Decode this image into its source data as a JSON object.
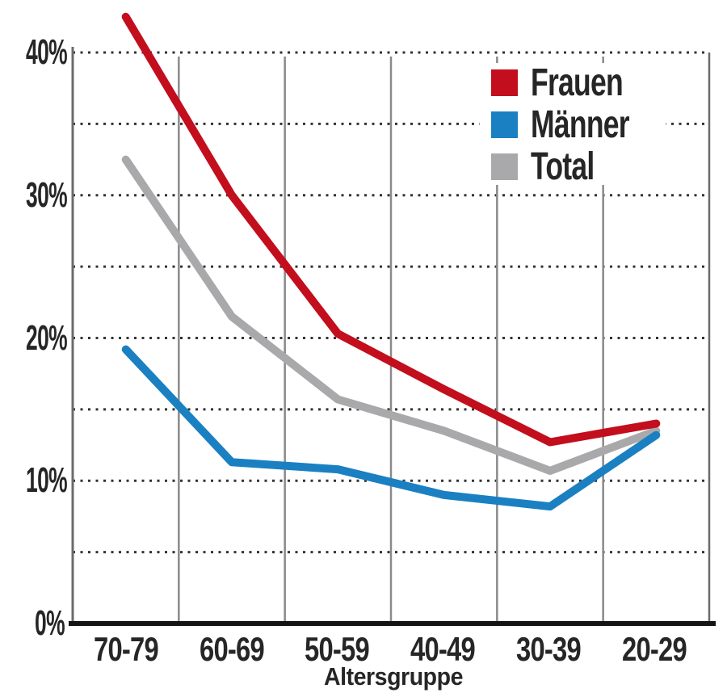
{
  "chart_data": {
    "type": "line",
    "title": "",
    "xlabel": "Altersgruppe",
    "ylabel": "",
    "categories": [
      "70-79",
      "60-69",
      "50-59",
      "40-49",
      "30-39",
      "20-29"
    ],
    "series": [
      {
        "name": "Frauen",
        "color": "#c30e1d",
        "values": [
          42.5,
          30.0,
          20.3,
          16.4,
          12.7,
          14.0
        ]
      },
      {
        "name": "Männer",
        "color": "#1a80c2",
        "values": [
          19.2,
          11.3,
          10.8,
          9.0,
          8.2,
          13.2
        ]
      },
      {
        "name": "Total",
        "color": "#a9a9ab",
        "values": [
          32.5,
          21.5,
          15.7,
          13.5,
          10.7,
          13.5
        ]
      }
    ],
    "y_ticks_labeled": [
      "0%",
      "10%",
      "20%",
      "30%",
      "40%"
    ],
    "y_tick_values": [
      0,
      10,
      20,
      30,
      40
    ],
    "grid_step": 5,
    "ylim": [
      0,
      44
    ],
    "legend_position": "top-right",
    "grid": "dotted horizontal every 5%, solid gray vertical separators between categories",
    "styles": {
      "dotted_grid_color": "#333333",
      "vertical_grid_color": "#8a8a8a",
      "axis_color": "#6b6b6b",
      "x_axis_color": "#141414",
      "text_color": "#262626",
      "background": "#ffffff",
      "line_width": 10
    }
  }
}
